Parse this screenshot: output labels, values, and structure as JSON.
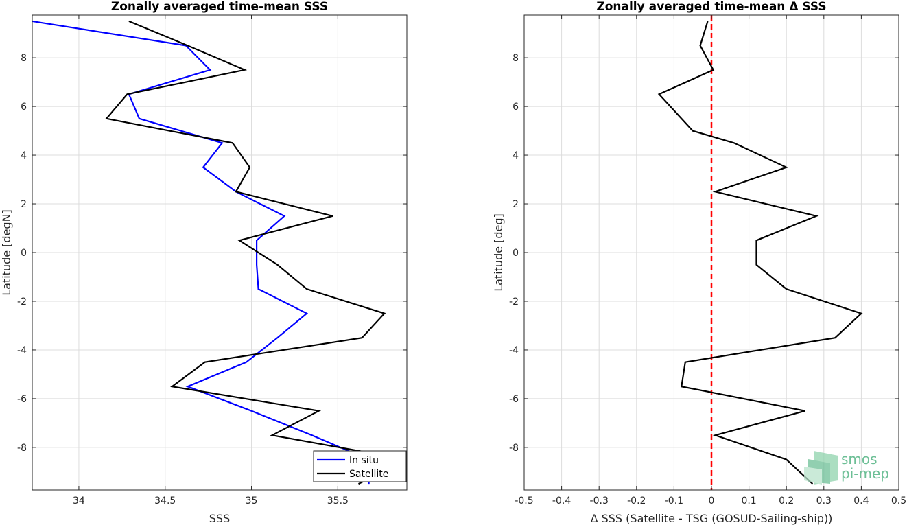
{
  "chart_data": [
    {
      "type": "line",
      "title": "Zonally averaged time-mean SSS",
      "xlabel": "SSS",
      "ylabel": "Latitude [degN]",
      "xlim": [
        33.73,
        35.9
      ],
      "ylim": [
        -9.75,
        9.75
      ],
      "xticks": [
        34,
        34.5,
        35,
        35.5
      ],
      "xtick_labels": [
        "34",
        "34.5",
        "35",
        "35.5"
      ],
      "yticks": [
        -8,
        -6,
        -4,
        -2,
        0,
        2,
        4,
        6,
        8
      ],
      "ytick_labels": [
        "-8",
        "-6",
        "-4",
        "-2",
        "0",
        "2",
        "4",
        "6",
        "8"
      ],
      "grid": true,
      "legend_position": "bottom-right",
      "series": [
        {
          "name": "In situ",
          "color": "#0000ff",
          "points": [
            [
              33.73,
              9.5
            ],
            [
              34.62,
              8.5
            ],
            [
              34.76,
              7.5
            ],
            [
              34.29,
              6.5
            ],
            [
              34.35,
              5.5
            ],
            [
              34.83,
              4.5
            ],
            [
              34.72,
              3.5
            ],
            [
              34.91,
              2.5
            ],
            [
              35.19,
              1.5
            ],
            [
              35.03,
              0.5
            ],
            [
              35.03,
              -0.5
            ],
            [
              35.04,
              -1.5
            ],
            [
              35.32,
              -2.5
            ],
            [
              35.15,
              -3.5
            ],
            [
              34.97,
              -4.5
            ],
            [
              34.63,
              -5.5
            ],
            [
              35.0,
              -6.5
            ],
            [
              35.35,
              -7.5
            ],
            [
              35.68,
              -8.5
            ],
            [
              35.68,
              -9.5
            ]
          ]
        },
        {
          "name": "Satellite",
          "color": "#000000",
          "points": [
            [
              34.29,
              9.5
            ],
            [
              34.63,
              8.5
            ],
            [
              34.96,
              7.5
            ],
            [
              34.28,
              6.5
            ],
            [
              34.16,
              5.5
            ],
            [
              34.89,
              4.5
            ],
            [
              34.99,
              3.5
            ],
            [
              34.91,
              2.5
            ],
            [
              35.47,
              1.5
            ],
            [
              34.93,
              0.5
            ],
            [
              35.15,
              -0.5
            ],
            [
              35.32,
              -1.5
            ],
            [
              35.77,
              -2.5
            ],
            [
              35.64,
              -3.5
            ],
            [
              34.73,
              -4.5
            ],
            [
              34.54,
              -5.5
            ],
            [
              35.39,
              -6.5
            ],
            [
              35.12,
              -7.5
            ],
            [
              35.9,
              -8.5
            ],
            [
              35.62,
              -9.5
            ]
          ]
        }
      ]
    },
    {
      "type": "line",
      "title": "Zonally averaged time-mean Δ SSS",
      "xlabel": "Δ SSS (Satellite - TSG (GOSUD-Sailing-ship))",
      "ylabel": "Latitude [deg]",
      "xlim": [
        -0.5,
        0.5
      ],
      "ylim": [
        -9.75,
        9.75
      ],
      "xticks": [
        -0.5,
        -0.4,
        -0.3,
        -0.2,
        -0.1,
        0,
        0.1,
        0.2,
        0.3,
        0.4,
        0.5
      ],
      "xtick_labels": [
        "-0.5",
        "-0.4",
        "-0.3",
        "-0.2",
        "-0.1",
        "0",
        "0.1",
        "0.2",
        "0.3",
        "0.4",
        "0.5"
      ],
      "yticks": [
        -8,
        -6,
        -4,
        -2,
        0,
        2,
        4,
        6,
        8
      ],
      "ytick_labels": [
        "-8",
        "-6",
        "-4",
        "-2",
        "0",
        "2",
        "4",
        "6",
        "8"
      ],
      "grid": true,
      "reference_line": {
        "x": 0,
        "color": "#ff0000",
        "style": "dashed"
      },
      "series": [
        {
          "color": "#000000",
          "points": [
            [
              -0.01,
              9.5
            ],
            [
              -0.03,
              8.5
            ],
            [
              0.005,
              7.5
            ],
            [
              -0.14,
              6.5
            ],
            [
              -0.05,
              5.0
            ],
            [
              0.06,
              4.5
            ],
            [
              0.2,
              3.5
            ],
            [
              0.01,
              2.5
            ],
            [
              0.28,
              1.5
            ],
            [
              0.12,
              0.5
            ],
            [
              0.12,
              -0.5
            ],
            [
              0.2,
              -1.5
            ],
            [
              0.4,
              -2.5
            ],
            [
              0.33,
              -3.5
            ],
            [
              -0.07,
              -4.5
            ],
            [
              -0.08,
              -5.5
            ],
            [
              0.25,
              -6.5
            ],
            [
              0.01,
              -7.5
            ],
            [
              0.2,
              -8.5
            ],
            [
              0.27,
              -9.5
            ]
          ]
        }
      ]
    }
  ],
  "logo": {
    "line1": "smos",
    "line2": "pi-mep"
  }
}
